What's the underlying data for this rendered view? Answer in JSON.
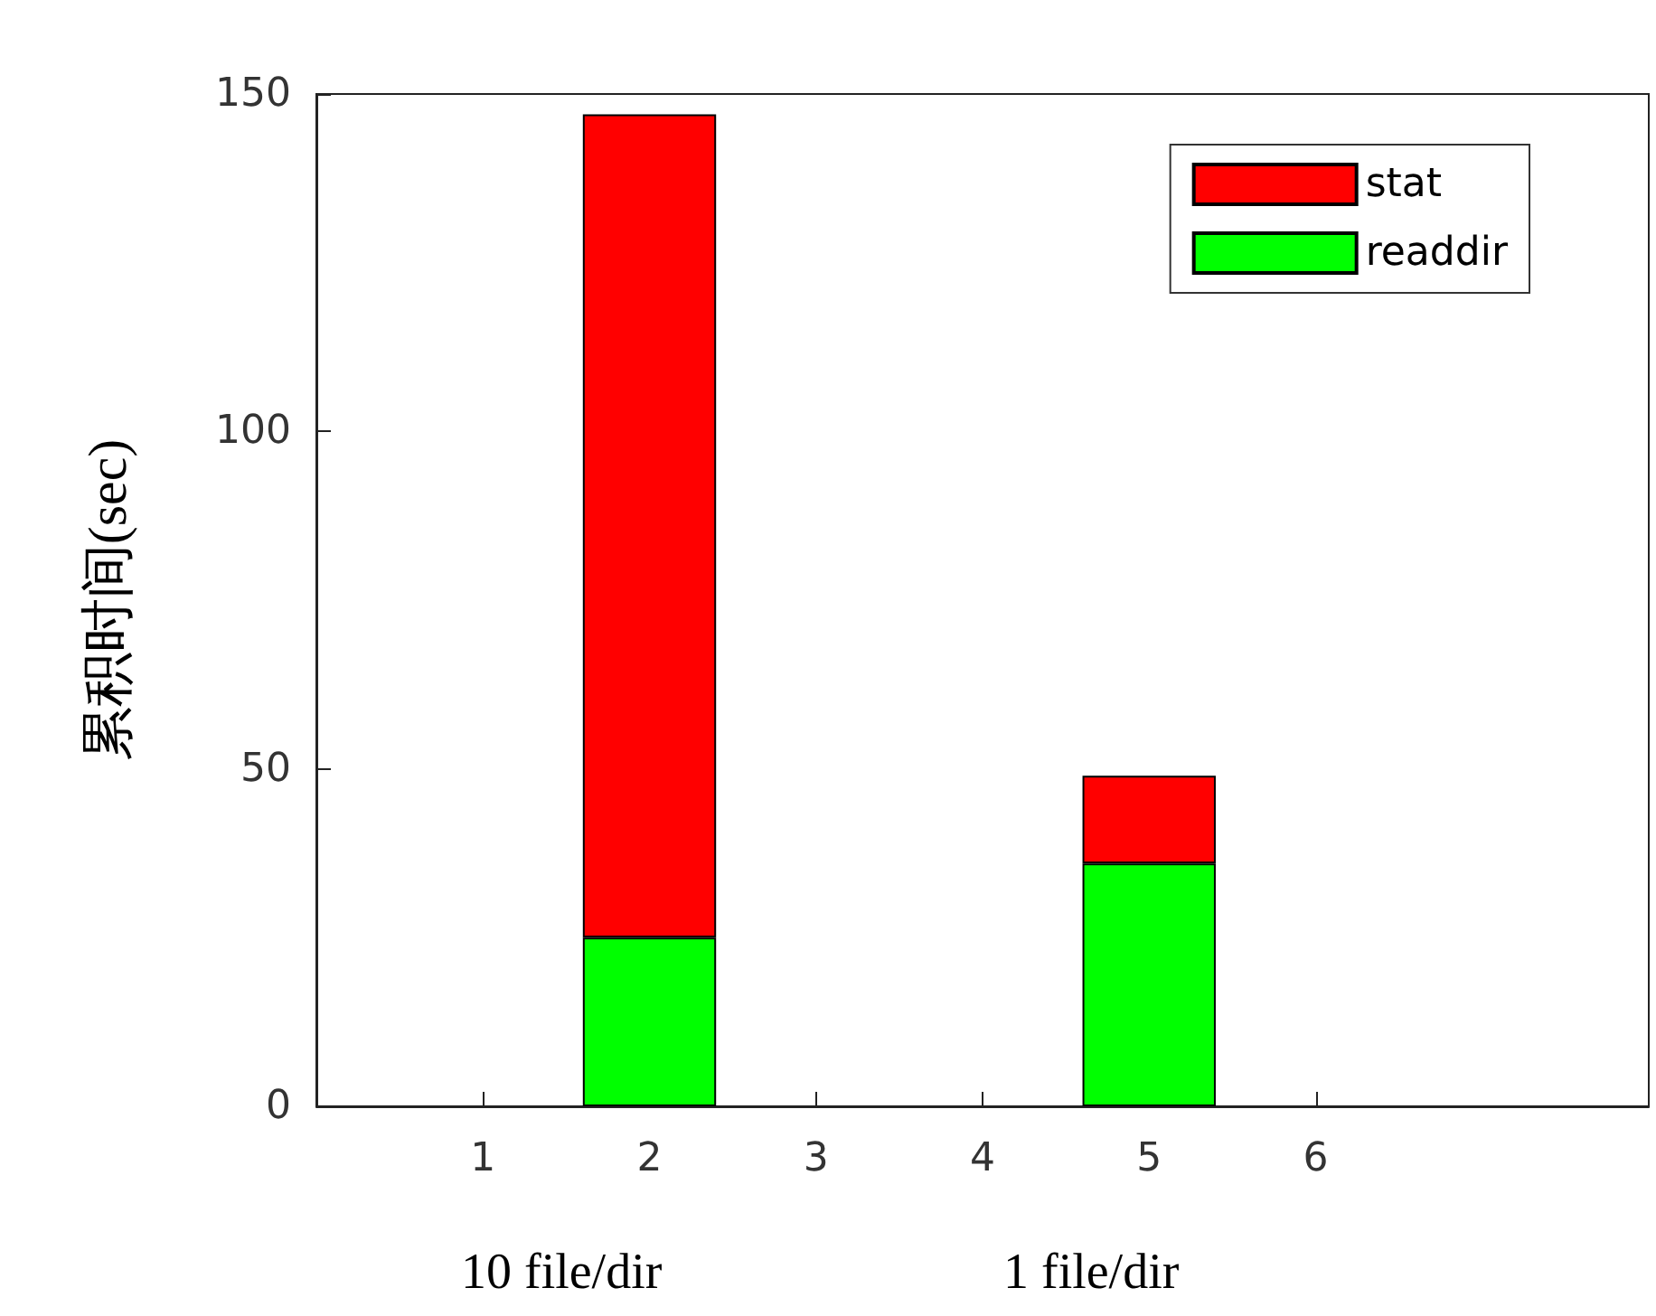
{
  "chart_data": {
    "type": "bar",
    "stacked": true,
    "ylabel": "累积时间(sec)",
    "x": [
      2,
      5
    ],
    "series": [
      {
        "name": "readdir",
        "color": "#00ff00",
        "values": [
          25,
          36
        ]
      },
      {
        "name": "stat",
        "color": "#ff0000",
        "values": [
          122,
          13
        ]
      }
    ],
    "xlim": [
      0,
      8
    ],
    "xticks": [
      1,
      2,
      3,
      4,
      5,
      6
    ],
    "ylim": [
      0,
      150
    ],
    "yticks": [
      0,
      50,
      100,
      150
    ],
    "legend": "top right",
    "grid": false,
    "annotations": [
      "10 file/dir",
      "1 file/dir"
    ]
  }
}
